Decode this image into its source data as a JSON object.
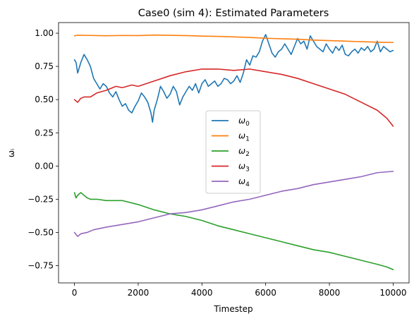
{
  "chart_data": {
    "type": "line",
    "title": "Case0 (sim 4): Estimated Parameters",
    "xlabel": "Timestep",
    "ylabel": "ωᵢ",
    "xlim": [
      -500,
      10500
    ],
    "ylim": [
      -0.88,
      1.08
    ],
    "xticks": [
      0,
      2000,
      4000,
      6000,
      8000,
      10000
    ],
    "xtick_labels": [
      "0",
      "2000",
      "4000",
      "6000",
      "8000",
      "10000"
    ],
    "yticks": [
      -0.75,
      -0.5,
      -0.25,
      0.0,
      0.25,
      0.5,
      0.75,
      1.0
    ],
    "ytick_labels": [
      "−0.75",
      "−0.50",
      "−0.25",
      "0.00",
      "0.25",
      "0.50",
      "0.75",
      "1.00"
    ],
    "grid": false,
    "legend_position": "center",
    "series": [
      {
        "name": "ω₀",
        "base": "ω",
        "sub": "0",
        "color": "#1f77b4",
        "x": [
          0,
          50,
          100,
          200,
          300,
          400,
          500,
          600,
          700,
          800,
          900,
          1000,
          1100,
          1200,
          1300,
          1400,
          1500,
          1600,
          1700,
          1800,
          1900,
          2000,
          2100,
          2200,
          2300,
          2400,
          2450,
          2500,
          2600,
          2700,
          2800,
          2900,
          3000,
          3100,
          3200,
          3300,
          3400,
          3500,
          3600,
          3700,
          3800,
          3900,
          4000,
          4100,
          4200,
          4300,
          4400,
          4500,
          4600,
          4700,
          4800,
          4900,
          5000,
          5100,
          5200,
          5300,
          5400,
          5500,
          5600,
          5700,
          5800,
          5900,
          6000,
          6100,
          6200,
          6300,
          6400,
          6500,
          6600,
          6700,
          6800,
          6900,
          7000,
          7100,
          7200,
          7300,
          7400,
          7500,
          7600,
          7700,
          7800,
          7900,
          8000,
          8100,
          8200,
          8300,
          8400,
          8500,
          8600,
          8700,
          8800,
          8900,
          9000,
          9100,
          9200,
          9300,
          9400,
          9500,
          9600,
          9700,
          9800,
          9900,
          10000
        ],
        "values": [
          0.8,
          0.78,
          0.7,
          0.78,
          0.84,
          0.8,
          0.75,
          0.66,
          0.62,
          0.58,
          0.62,
          0.6,
          0.55,
          0.52,
          0.56,
          0.5,
          0.45,
          0.47,
          0.42,
          0.4,
          0.45,
          0.49,
          0.55,
          0.52,
          0.48,
          0.4,
          0.33,
          0.42,
          0.5,
          0.6,
          0.56,
          0.51,
          0.54,
          0.6,
          0.56,
          0.46,
          0.52,
          0.56,
          0.6,
          0.57,
          0.62,
          0.55,
          0.62,
          0.65,
          0.6,
          0.62,
          0.64,
          0.6,
          0.62,
          0.66,
          0.65,
          0.62,
          0.64,
          0.68,
          0.63,
          0.7,
          0.8,
          0.76,
          0.83,
          0.82,
          0.86,
          0.94,
          0.99,
          0.92,
          0.85,
          0.82,
          0.86,
          0.88,
          0.92,
          0.88,
          0.84,
          0.9,
          0.96,
          0.92,
          0.94,
          0.88,
          0.98,
          0.94,
          0.9,
          0.88,
          0.86,
          0.92,
          0.88,
          0.85,
          0.9,
          0.87,
          0.91,
          0.84,
          0.83,
          0.86,
          0.88,
          0.85,
          0.89,
          0.87,
          0.9,
          0.86,
          0.88,
          0.94,
          0.86,
          0.9,
          0.88,
          0.86,
          0.87
        ]
      },
      {
        "name": "ω₁",
        "base": "ω",
        "sub": "1",
        "color": "#ff7f0e",
        "x": [
          0,
          100,
          500,
          1000,
          1500,
          2000,
          2500,
          3000,
          3500,
          4000,
          4500,
          5000,
          5500,
          6000,
          6500,
          7000,
          7500,
          8000,
          8500,
          9000,
          9500,
          10000
        ],
        "values": [
          0.98,
          0.985,
          0.983,
          0.981,
          0.983,
          0.982,
          0.986,
          0.984,
          0.982,
          0.978,
          0.976,
          0.972,
          0.968,
          0.962,
          0.958,
          0.955,
          0.948,
          0.944,
          0.94,
          0.936,
          0.932,
          0.93
        ]
      },
      {
        "name": "ω₂",
        "base": "ω",
        "sub": "2",
        "color": "#2ca02c",
        "x": [
          0,
          50,
          100,
          200,
          300,
          400,
          500,
          700,
          1000,
          1500,
          2000,
          2500,
          3000,
          3500,
          4000,
          4500,
          5000,
          5500,
          6000,
          6500,
          7000,
          7500,
          8000,
          8500,
          9000,
          9500,
          9800,
          10000
        ],
        "values": [
          -0.2,
          -0.24,
          -0.22,
          -0.2,
          -0.22,
          -0.24,
          -0.25,
          -0.25,
          -0.26,
          -0.26,
          -0.29,
          -0.33,
          -0.36,
          -0.38,
          -0.41,
          -0.45,
          -0.48,
          -0.51,
          -0.54,
          -0.57,
          -0.6,
          -0.63,
          -0.65,
          -0.68,
          -0.71,
          -0.74,
          -0.76,
          -0.78
        ]
      },
      {
        "name": "ω₃",
        "base": "ω",
        "sub": "3",
        "color": "#d62728",
        "x": [
          0,
          100,
          200,
          300,
          500,
          700,
          1000,
          1300,
          1500,
          1800,
          2000,
          2500,
          3000,
          3500,
          4000,
          4500,
          5000,
          5500,
          6000,
          6500,
          7000,
          7500,
          8000,
          8500,
          9000,
          9500,
          9800,
          10000
        ],
        "values": [
          0.5,
          0.48,
          0.51,
          0.52,
          0.52,
          0.55,
          0.57,
          0.6,
          0.59,
          0.61,
          0.6,
          0.64,
          0.68,
          0.71,
          0.73,
          0.73,
          0.72,
          0.73,
          0.71,
          0.69,
          0.66,
          0.62,
          0.58,
          0.54,
          0.48,
          0.42,
          0.36,
          0.3
        ]
      },
      {
        "name": "ω₄",
        "base": "ω",
        "sub": "4",
        "color": "#9467bd",
        "x": [
          0,
          100,
          200,
          400,
          600,
          800,
          1000,
          1500,
          2000,
          2500,
          3000,
          3500,
          4000,
          4500,
          5000,
          5500,
          6000,
          6500,
          7000,
          7500,
          8000,
          8500,
          9000,
          9500,
          10000
        ],
        "values": [
          -0.5,
          -0.53,
          -0.51,
          -0.5,
          -0.48,
          -0.47,
          -0.46,
          -0.44,
          -0.42,
          -0.39,
          -0.36,
          -0.35,
          -0.33,
          -0.3,
          -0.27,
          -0.25,
          -0.22,
          -0.19,
          -0.17,
          -0.14,
          -0.12,
          -0.1,
          -0.08,
          -0.05,
          -0.04
        ]
      }
    ]
  }
}
